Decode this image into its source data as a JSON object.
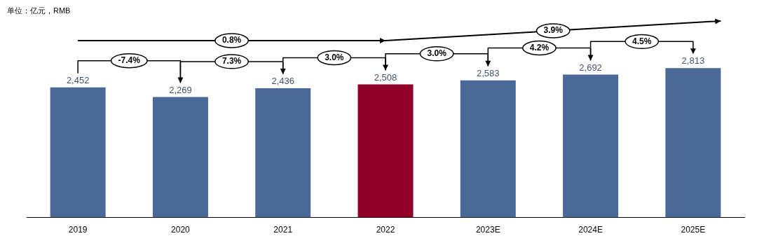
{
  "chart_data": {
    "type": "bar",
    "categories": [
      "2019",
      "2020",
      "2021",
      "2022",
      "2023E",
      "2024E",
      "2025E"
    ],
    "values": [
      2452,
      2269,
      2436,
      2508,
      2583,
      2692,
      2813
    ],
    "colors": [
      "#4a6898",
      "#4a6898",
      "#4a6898",
      "#900028",
      "#4a6898",
      "#4a6898",
      "#4a6898"
    ],
    "value_labels": [
      "2,452",
      "2,269",
      "2,436",
      "2,508",
      "2,583",
      "2,692",
      "2,813"
    ],
    "tick_labels": "x",
    "annotations": [
      "单位：亿元，RMB",
      "-7.4%",
      "7.3%",
      "3.0%",
      "3.0%",
      "4.2%",
      "4.5%",
      "0.8%",
      "3.9%"
    ]
  }
}
